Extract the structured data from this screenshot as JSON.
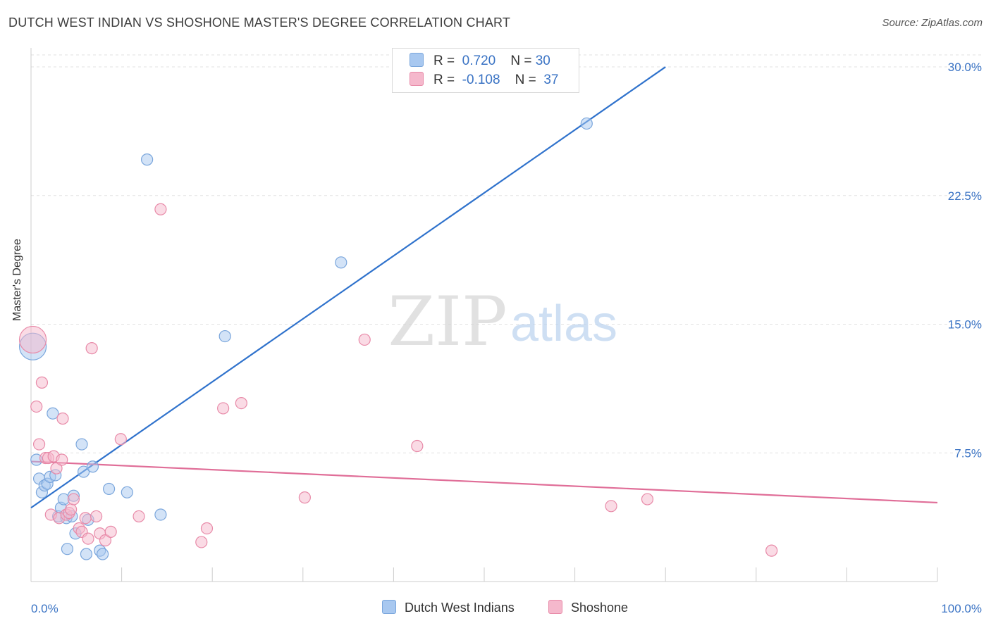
{
  "title": "DUTCH WEST INDIAN VS SHOSHONE MASTER'S DEGREE CORRELATION CHART",
  "source": "Source: ZipAtlas.com",
  "watermark": {
    "zip": "ZIP",
    "atlas": "atlas"
  },
  "legend": [
    {
      "name": "Dutch West Indians",
      "r_label": "R =",
      "r_value": "0.720",
      "n_label": "N =",
      "n_value": "30",
      "color": "#a8c8f0"
    },
    {
      "name": "Shoshone",
      "r_label": "R =",
      "r_value": "-0.108",
      "n_label": "N =",
      "n_value": "37",
      "color": "#f5b8cc"
    }
  ],
  "chart_data": {
    "type": "scatter",
    "title": "DUTCH WEST INDIAN VS SHOSHONE MASTER'S DEGREE CORRELATION CHART",
    "xlabel": "",
    "ylabel": "Master's Degree",
    "xlim": [
      0,
      100
    ],
    "ylim": [
      0,
      30.7
    ],
    "x_tick_labels": [
      "0.0%",
      "100.0%"
    ],
    "y_ticks": [
      7.5,
      15.0,
      22.5,
      30.0
    ],
    "y_tick_labels": [
      "7.5%",
      "15.0%",
      "22.5%",
      "30.0%"
    ],
    "series": [
      {
        "name": "Dutch West Indians",
        "color": "#a8c8f0",
        "stroke": "#7aa6dc",
        "line_color": "#2f72cc",
        "trend": {
          "x": [
            0,
            70
          ],
          "y": [
            4.3,
            30.0
          ]
        },
        "points": [
          {
            "x": 0.2,
            "y": 13.7,
            "big": true
          },
          {
            "x": 0.6,
            "y": 7.1
          },
          {
            "x": 0.9,
            "y": 6.0
          },
          {
            "x": 1.2,
            "y": 5.2
          },
          {
            "x": 1.5,
            "y": 5.6
          },
          {
            "x": 1.8,
            "y": 5.7
          },
          {
            "x": 2.1,
            "y": 6.1
          },
          {
            "x": 2.4,
            "y": 9.8
          },
          {
            "x": 2.7,
            "y": 6.2
          },
          {
            "x": 3.0,
            "y": 3.8
          },
          {
            "x": 3.3,
            "y": 4.3
          },
          {
            "x": 3.6,
            "y": 4.8
          },
          {
            "x": 3.9,
            "y": 3.7
          },
          {
            "x": 4.0,
            "y": 1.9
          },
          {
            "x": 4.5,
            "y": 3.8
          },
          {
            "x": 4.7,
            "y": 5.0
          },
          {
            "x": 4.9,
            "y": 2.8
          },
          {
            "x": 5.6,
            "y": 8.0
          },
          {
            "x": 5.8,
            "y": 6.4
          },
          {
            "x": 6.1,
            "y": 1.6
          },
          {
            "x": 6.3,
            "y": 3.6
          },
          {
            "x": 6.8,
            "y": 6.7
          },
          {
            "x": 7.6,
            "y": 1.8
          },
          {
            "x": 7.9,
            "y": 1.6
          },
          {
            "x": 8.6,
            "y": 5.4
          },
          {
            "x": 10.6,
            "y": 5.2
          },
          {
            "x": 12.8,
            "y": 24.6
          },
          {
            "x": 14.3,
            "y": 3.9
          },
          {
            "x": 21.4,
            "y": 14.3
          },
          {
            "x": 34.2,
            "y": 18.6
          },
          {
            "x": 61.3,
            "y": 26.7
          }
        ]
      },
      {
        "name": "Shoshone",
        "color": "#f5b8cc",
        "stroke": "#e88aa8",
        "line_color": "#e06e98",
        "trend": {
          "x": [
            0,
            100
          ],
          "y": [
            7.0,
            4.6
          ]
        },
        "points": [
          {
            "x": 0.2,
            "y": 14.1,
            "big": true
          },
          {
            "x": 0.6,
            "y": 10.2
          },
          {
            "x": 0.9,
            "y": 8.0
          },
          {
            "x": 1.2,
            "y": 11.6
          },
          {
            "x": 1.6,
            "y": 7.2
          },
          {
            "x": 1.9,
            "y": 7.2
          },
          {
            "x": 2.2,
            "y": 3.9
          },
          {
            "x": 2.5,
            "y": 7.3
          },
          {
            "x": 2.8,
            "y": 6.6
          },
          {
            "x": 3.1,
            "y": 3.7
          },
          {
            "x": 3.4,
            "y": 7.1
          },
          {
            "x": 3.5,
            "y": 9.5
          },
          {
            "x": 3.9,
            "y": 3.9
          },
          {
            "x": 4.2,
            "y": 4.0
          },
          {
            "x": 4.4,
            "y": 4.2
          },
          {
            "x": 4.7,
            "y": 4.8
          },
          {
            "x": 5.3,
            "y": 3.1
          },
          {
            "x": 5.6,
            "y": 2.9
          },
          {
            "x": 6.0,
            "y": 3.7
          },
          {
            "x": 6.3,
            "y": 2.5
          },
          {
            "x": 6.7,
            "y": 13.6
          },
          {
            "x": 7.2,
            "y": 3.8
          },
          {
            "x": 7.6,
            "y": 2.8
          },
          {
            "x": 8.2,
            "y": 2.4
          },
          {
            "x": 8.8,
            "y": 2.9
          },
          {
            "x": 9.9,
            "y": 8.3
          },
          {
            "x": 11.9,
            "y": 3.8
          },
          {
            "x": 14.3,
            "y": 21.7
          },
          {
            "x": 18.8,
            "y": 2.3
          },
          {
            "x": 19.4,
            "y": 3.1
          },
          {
            "x": 21.2,
            "y": 10.1
          },
          {
            "x": 23.2,
            "y": 10.4
          },
          {
            "x": 30.2,
            "y": 4.9
          },
          {
            "x": 36.8,
            "y": 14.1
          },
          {
            "x": 42.6,
            "y": 7.9
          },
          {
            "x": 64.0,
            "y": 4.4
          },
          {
            "x": 68.0,
            "y": 4.8
          },
          {
            "x": 81.7,
            "y": 1.8
          }
        ]
      }
    ]
  }
}
